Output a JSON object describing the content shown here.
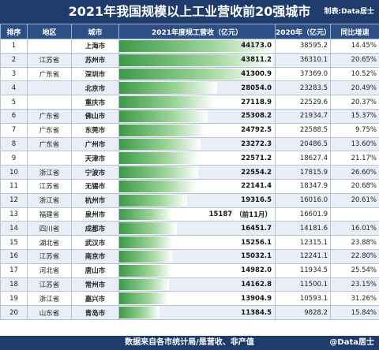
{
  "header": {
    "title": "2021年我国规模以上工业营收前20强城市",
    "maker": "制表:Data居士"
  },
  "columns": [
    "排序",
    "地区",
    "城市",
    "2021年度规工营收（亿元）",
    "2020年（亿元）",
    "同比增速"
  ],
  "footer": {
    "source": "数据来自各市统计局/是营收、非产值",
    "watermark": "@Data居士"
  },
  "chart_data": {
    "type": "table",
    "title": "2021年我国规模以上工业营收前20强城市",
    "value_column": "2021年度规工营收（亿元）",
    "xlim": [
      0,
      44173.0
    ],
    "rows": [
      {
        "rank": "1",
        "province": "",
        "city": "上海市",
        "v2021": 44173.0,
        "v2021_label": "44173.0",
        "note": "",
        "v2020": "38595.2",
        "growth": "14.45%"
      },
      {
        "rank": "2",
        "province": "江苏省",
        "city": "苏州市",
        "v2021": 43811.2,
        "v2021_label": "43811.2",
        "note": "",
        "v2020": "36310.1",
        "growth": "20.65%"
      },
      {
        "rank": "3",
        "province": "广东省",
        "city": "深圳市",
        "v2021": 41300.9,
        "v2021_label": "41300.9",
        "note": "",
        "v2020": "37369.0",
        "growth": "10.52%"
      },
      {
        "rank": "4",
        "province": "",
        "city": "北京市",
        "v2021": 28054.0,
        "v2021_label": "28054.0",
        "note": "",
        "v2020": "23283.5",
        "growth": "20.49%"
      },
      {
        "rank": "5",
        "province": "",
        "city": "重庆市",
        "v2021": 27118.9,
        "v2021_label": "27118.9",
        "note": "",
        "v2020": "22529.6",
        "growth": "20.37%"
      },
      {
        "rank": "6",
        "province": "广东省",
        "city": "佛山市",
        "v2021": 25308.2,
        "v2021_label": "25308.2",
        "note": "",
        "v2020": "21934.7",
        "growth": "15.37%"
      },
      {
        "rank": "7",
        "province": "广东省",
        "city": "东莞市",
        "v2021": 24792.5,
        "v2021_label": "24792.5",
        "note": "",
        "v2020": "22588.5",
        "growth": "9.75%"
      },
      {
        "rank": "8",
        "province": "广东省",
        "city": "广州市",
        "v2021": 23272.3,
        "v2021_label": "23272.3",
        "note": "",
        "v2020": "20486.5",
        "growth": "13.60%"
      },
      {
        "rank": "9",
        "province": "",
        "city": "天津市",
        "v2021": 22571.2,
        "v2021_label": "22571.2",
        "note": "",
        "v2020": "18627.4",
        "growth": "21.17%"
      },
      {
        "rank": "10",
        "province": "浙江省",
        "city": "宁波市",
        "v2021": 22554.2,
        "v2021_label": "22554.2",
        "note": "",
        "v2020": "17815.9",
        "growth": "26.60%"
      },
      {
        "rank": "11",
        "province": "江苏省",
        "city": "无锡市",
        "v2021": 22141.4,
        "v2021_label": "22141.4",
        "note": "",
        "v2020": "18347.9",
        "growth": "20.68%"
      },
      {
        "rank": "12",
        "province": "浙江省",
        "city": "杭州市",
        "v2021": 19316.5,
        "v2021_label": "19316.5",
        "note": "",
        "v2020": "16016.0",
        "growth": "20.61%"
      },
      {
        "rank": "13",
        "province": "福建省",
        "city": "泉州市",
        "v2021": 15187,
        "v2021_label": "15187",
        "note": "（前11月）",
        "v2020": "16601.9",
        "growth": ""
      },
      {
        "rank": "14",
        "province": "四川省",
        "city": "成都市",
        "v2021": 16451.7,
        "v2021_label": "16451.7",
        "note": "",
        "v2020": "14181.6",
        "growth": "16.01%"
      },
      {
        "rank": "15",
        "province": "湖北省",
        "city": "武汉市",
        "v2021": 15256.1,
        "v2021_label": "15256.1",
        "note": "",
        "v2020": "12315.1",
        "growth": "23.88%"
      },
      {
        "rank": "16",
        "province": "江苏省",
        "city": "南京市",
        "v2021": 15032.1,
        "v2021_label": "15032.1",
        "note": "",
        "v2020": "12241.1",
        "growth": "22.80%"
      },
      {
        "rank": "17",
        "province": "河北省",
        "city": "唐山市",
        "v2021": 14982.0,
        "v2021_label": "14982.0",
        "note": "",
        "v2020": "11934.5",
        "growth": "25.54%"
      },
      {
        "rank": "18",
        "province": "江苏省",
        "city": "常州市",
        "v2021": 14162.8,
        "v2021_label": "14162.8",
        "note": "",
        "v2020": "11500.1",
        "growth": "23.15%"
      },
      {
        "rank": "19",
        "province": "浙江省",
        "city": "嘉兴市",
        "v2021": 13904.9,
        "v2021_label": "13904.9",
        "note": "",
        "v2020": "10593.1",
        "growth": "31.26%"
      },
      {
        "rank": "20",
        "province": "山东省",
        "city": "青岛市",
        "v2021": 11384.5,
        "v2021_label": "11384.5",
        "note": "",
        "v2020": "9828.2",
        "growth": "15.84%"
      }
    ]
  },
  "colors": {
    "header_bg": "#1f3b6b",
    "column_header_bg": "#2e4f85",
    "bar_green": "#3c9a47",
    "row_stripe": "#e9eef6"
  }
}
